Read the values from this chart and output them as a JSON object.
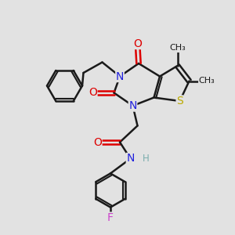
{
  "bg_color": "#e2e2e2",
  "bond_color": "#1a1a1a",
  "bond_width": 1.8,
  "atom_colors": {
    "N": "#2020dd",
    "O": "#dd0000",
    "S": "#bbaa00",
    "F": "#cc44cc",
    "H": "#7aadad",
    "C": "#1a1a1a"
  },
  "font_size": 10,
  "font_size_small": 8.5,
  "font_size_methyl": 8
}
